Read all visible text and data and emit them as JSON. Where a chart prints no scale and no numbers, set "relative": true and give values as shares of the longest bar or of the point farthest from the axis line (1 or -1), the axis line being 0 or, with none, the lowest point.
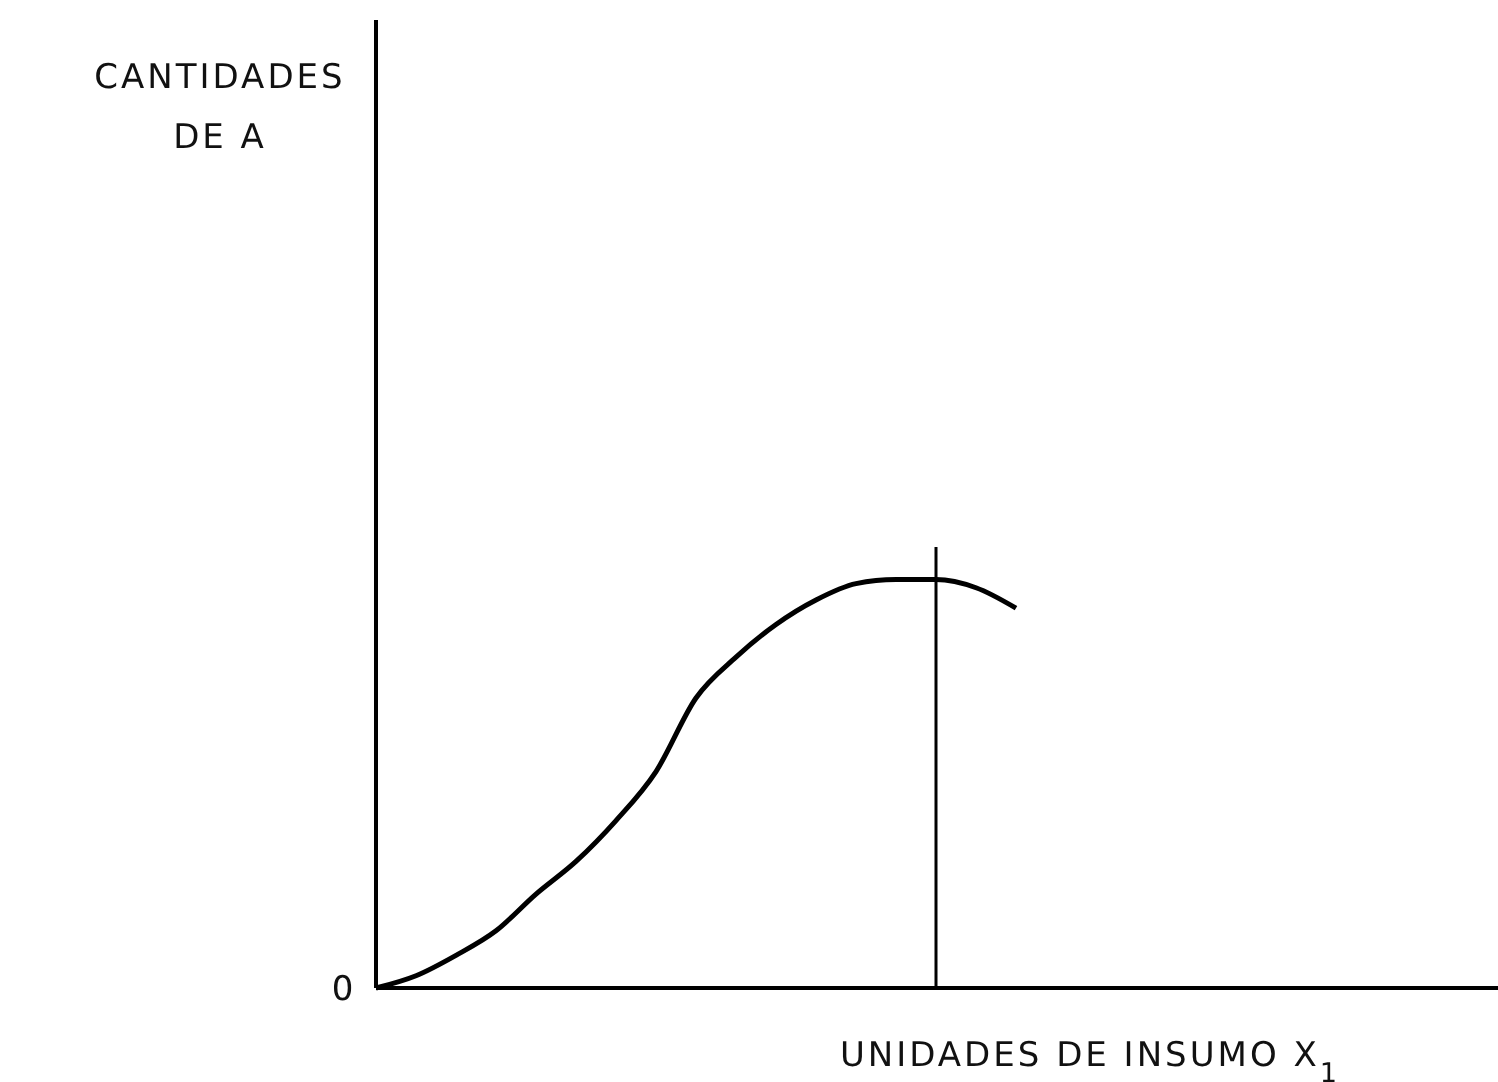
{
  "chart_data": {
    "type": "line",
    "relative": true,
    "xlabel": "UNIDADES DE INSUMO X$_{1}$",
    "annotations": [
      "CANTIDADES DE A",
      "0"
    ],
    "categories": [
      null,
      null,
      null,
      null,
      null,
      null,
      null,
      null,
      null,
      null,
      null,
      null,
      null,
      null,
      null,
      null,
      null,
      null,
      null,
      null,
      null,
      null,
      null,
      null,
      null,
      null,
      null,
      null,
      null
    ],
    "series": [
      {
        "color": "#000000",
        "values": [
          0,
          0.03,
          0.08,
          0.14,
          0.23,
          0.31,
          0.41,
          0.53,
          0.71,
          0.81,
          0.89,
          0.95,
          0.99,
          1.0,
          1.0,
          0.98,
          0.93,
          null,
          null,
          null,
          null,
          null,
          null,
          null,
          null,
          null,
          null,
          null,
          null
        ]
      }
    ],
    "marker": "none",
    "line_style": "solid"
  }
}
